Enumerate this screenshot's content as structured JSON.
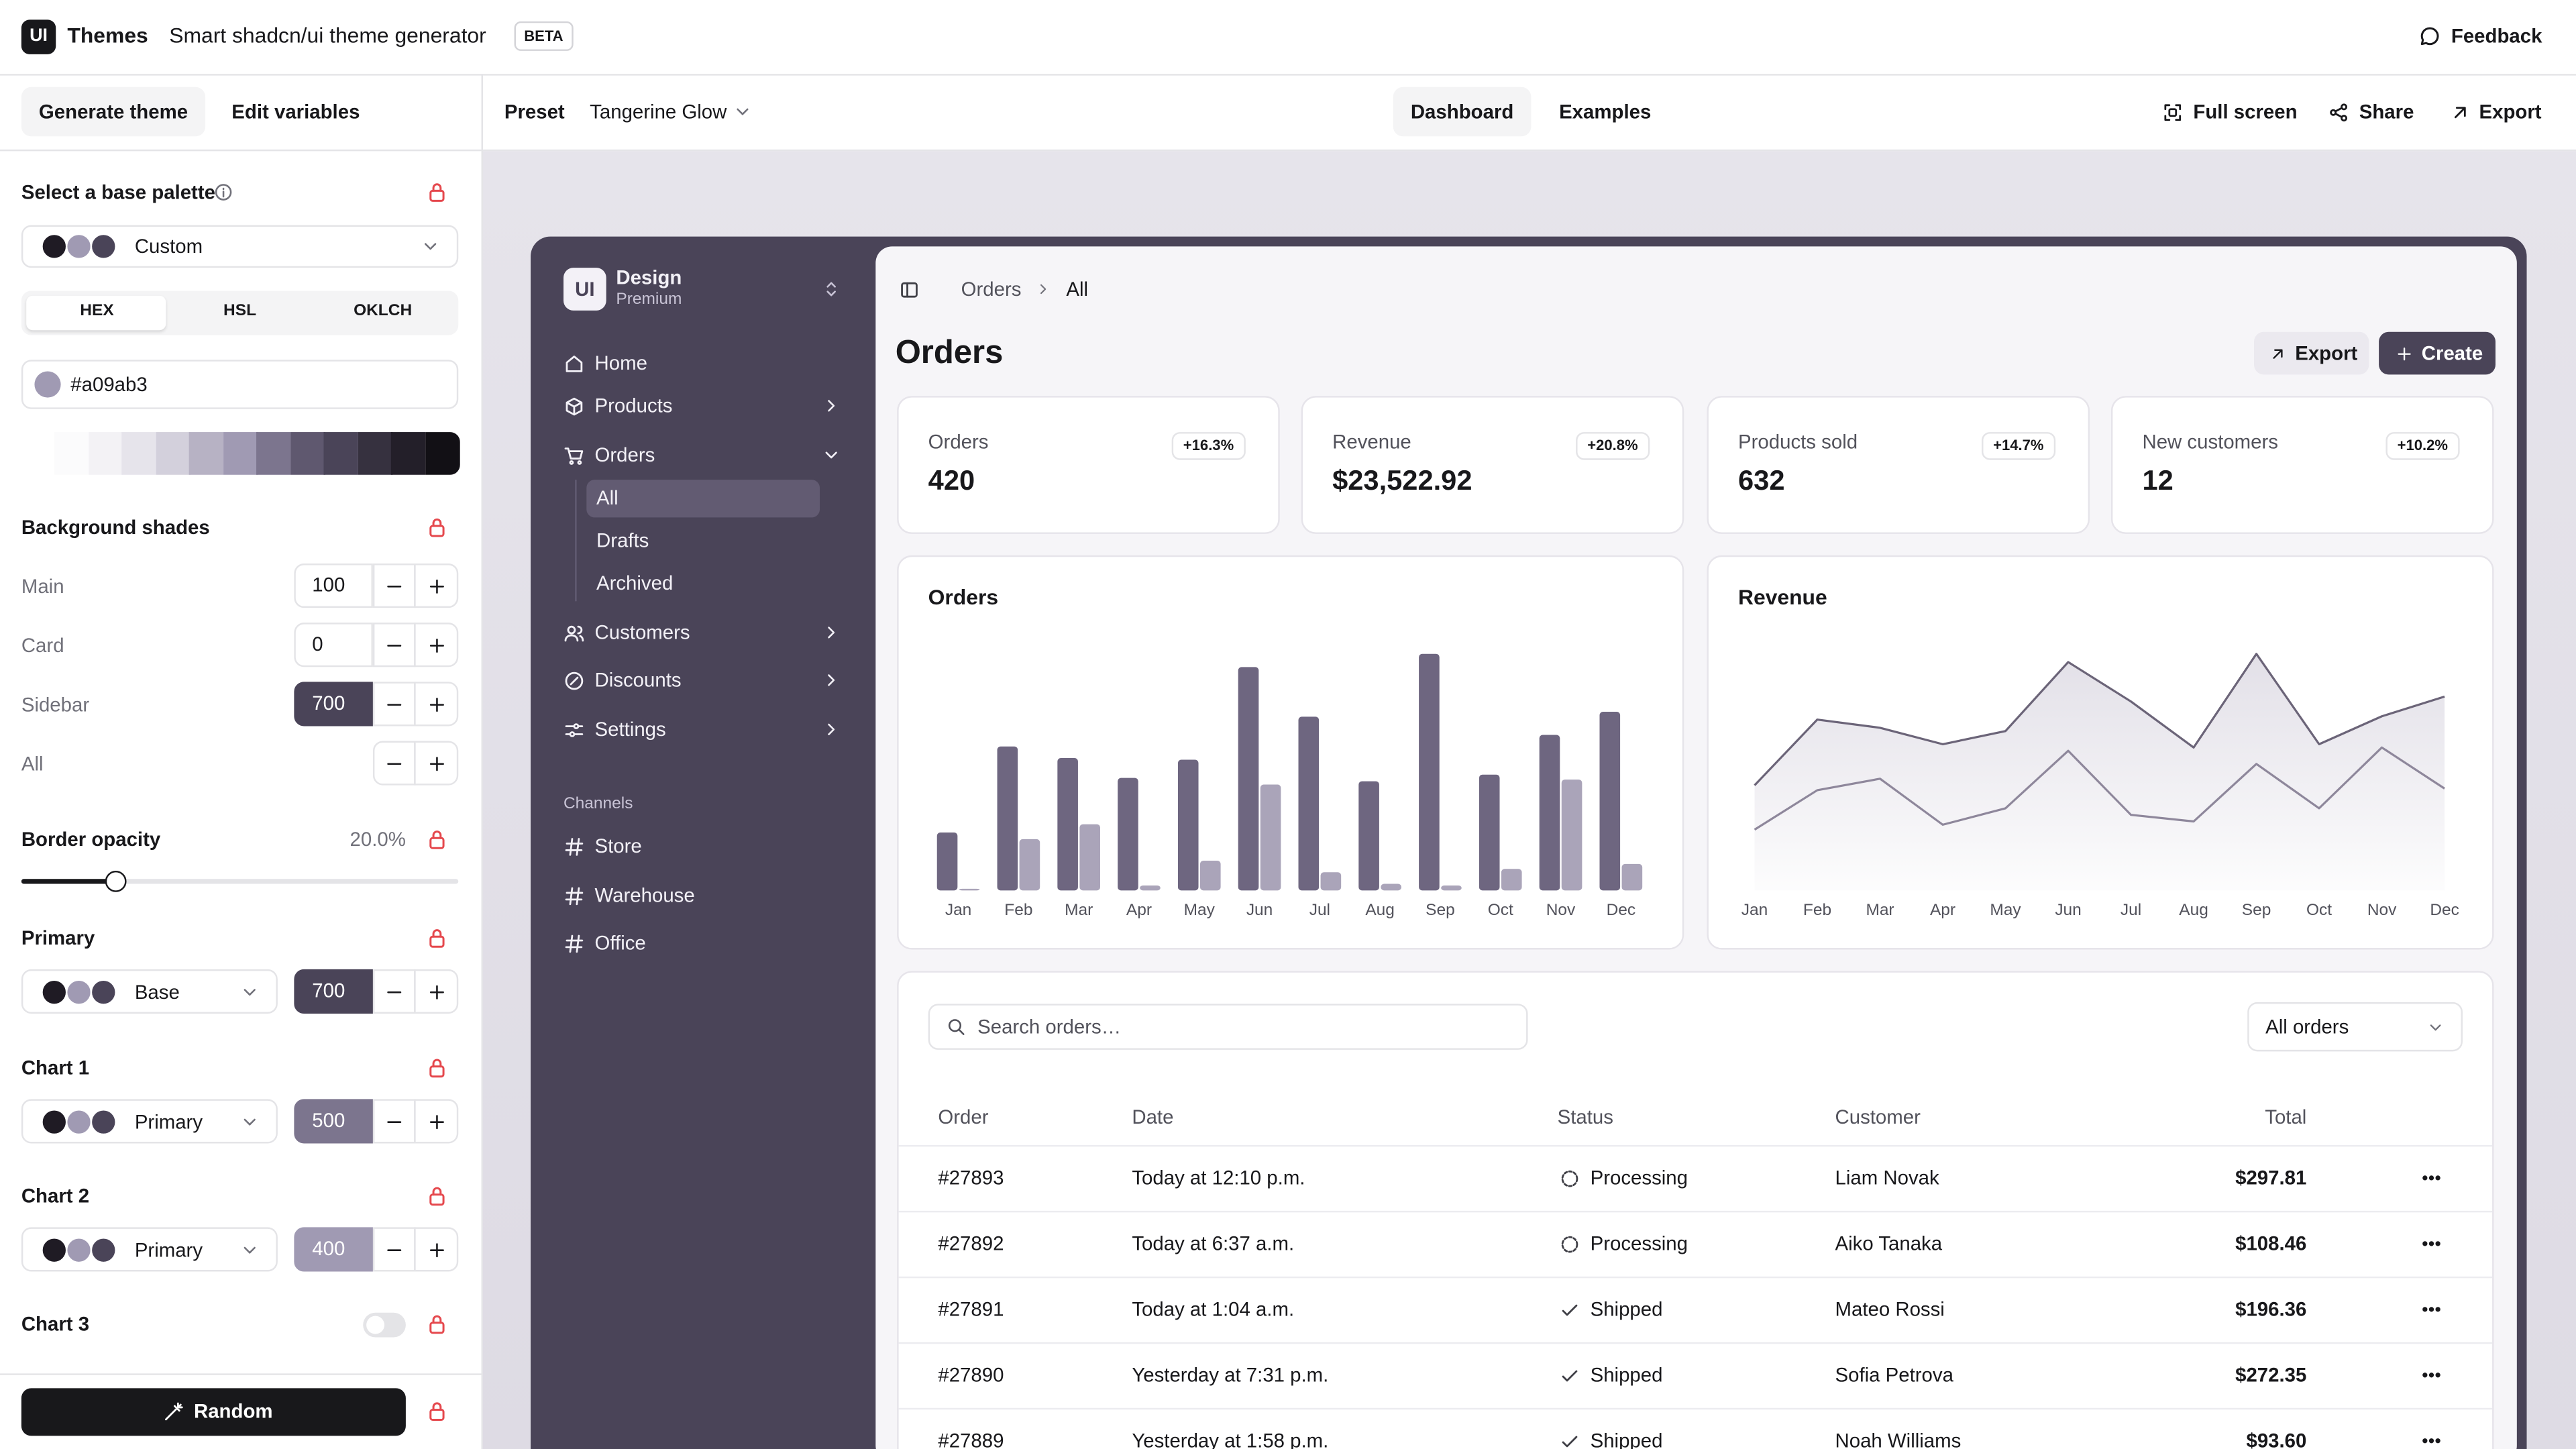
{
  "topbar": {
    "logo": "UI",
    "app_name": "Themes",
    "subtitle": "Smart shadcn/ui theme generator",
    "badge": "BETA",
    "feedback": "Feedback"
  },
  "left_panel": {
    "tabs": [
      "Generate theme",
      "Edit variables"
    ],
    "palette_label": "Select a base palette",
    "palette_value": "Custom",
    "formats": [
      "HEX",
      "HSL",
      "OKLCH"
    ],
    "color_value": "#a09ab3",
    "background_label": "Background shades",
    "shades": [
      {
        "label": "Main",
        "value": "100"
      },
      {
        "label": "Card",
        "value": "0"
      },
      {
        "label": "Sidebar",
        "value": "700"
      },
      {
        "label": "All"
      }
    ],
    "border_label": "Border opacity",
    "border_value": "20.0%",
    "color_rows": [
      {
        "label": "Primary",
        "select": "Base",
        "value": "700"
      },
      {
        "label": "Chart 1",
        "select": "Primary",
        "value": "500"
      },
      {
        "label": "Chart 2",
        "select": "Primary",
        "value": "400"
      }
    ],
    "chart3_label": "Chart 3",
    "random": "Random"
  },
  "toolbar": {
    "preset_label": "Preset",
    "preset": "Tangerine Glow",
    "tabs": [
      "Dashboard",
      "Examples"
    ],
    "actions": [
      "Full screen",
      "Share",
      "Export"
    ]
  },
  "preview": {
    "sidebar": {
      "logo": "UI",
      "name": "Design",
      "plan": "Premium",
      "nav": [
        "Home",
        "Products",
        "Orders",
        "Customers",
        "Discounts",
        "Settings"
      ],
      "subnav": [
        "All",
        "Drafts",
        "Archived"
      ],
      "channels_label": "Channels",
      "channels": [
        "Store",
        "Warehouse",
        "Office"
      ]
    },
    "breadcrumb": [
      "Orders",
      "All"
    ],
    "title": "Orders",
    "buttons": [
      "Export",
      "Create"
    ],
    "stats": [
      {
        "label": "Orders",
        "value": "420",
        "change": "+16.3%"
      },
      {
        "label": "Revenue",
        "value": "$23,522.92",
        "change": "+20.8%"
      },
      {
        "label": "Products sold",
        "value": "632",
        "change": "+14.7%"
      },
      {
        "label": "New customers",
        "value": "12",
        "change": "+10.2%"
      }
    ],
    "table": {
      "search": "Search orders…",
      "filter": "All orders",
      "headers": [
        "Order",
        "Date",
        "Status",
        "Customer",
        "Total"
      ],
      "rows": [
        [
          "#27893",
          "Today at 12:10 p.m.",
          "Processing",
          "Liam Novak",
          "$297.81"
        ],
        [
          "#27892",
          "Today at 6:37 a.m.",
          "Processing",
          "Aiko Tanaka",
          "$108.46"
        ],
        [
          "#27891",
          "Today at 1:04 a.m.",
          "Shipped",
          "Mateo Rossi",
          "$196.36"
        ],
        [
          "#27890",
          "Yesterday at 7:31 p.m.",
          "Shipped",
          "Sofia Petrova",
          "$272.35"
        ],
        [
          "#27889",
          "Yesterday at 1:58 p.m.",
          "Shipped",
          "Noah Williams",
          "$93.60"
        ]
      ]
    }
  },
  "chart_data": [
    {
      "type": "bar",
      "title": "Orders",
      "categories": [
        "Jan",
        "Feb",
        "Mar",
        "Apr",
        "May",
        "Jun",
        "Jul",
        "Aug",
        "Sep",
        "Oct",
        "Nov",
        "Dec"
      ],
      "series": [
        {
          "color": "#6e6680",
          "values": [
            35,
            87,
            80,
            68,
            79,
            135,
            105,
            66,
            143,
            70,
            94,
            108
          ]
        },
        {
          "color": "#aaa4b9",
          "values": [
            1,
            31,
            40,
            3,
            18,
            64,
            11,
            4,
            3,
            13,
            67,
            16
          ]
        }
      ]
    },
    {
      "type": "line",
      "title": "Revenue",
      "categories": [
        "Jan",
        "Feb",
        "Mar",
        "Apr",
        "May",
        "Jun",
        "Jul",
        "Aug",
        "Sep",
        "Oct",
        "Nov",
        "Dec"
      ],
      "series": [
        {
          "color": "#6b6478",
          "values": [
            64,
            104,
            99,
            89,
            97,
            139,
            115,
            87,
            144,
            89,
            106,
            118
          ]
        },
        {
          "color": "#8e879b",
          "values": [
            37,
            61,
            68,
            40,
            50,
            85,
            46,
            42,
            77,
            50,
            87,
            62
          ]
        }
      ]
    }
  ]
}
